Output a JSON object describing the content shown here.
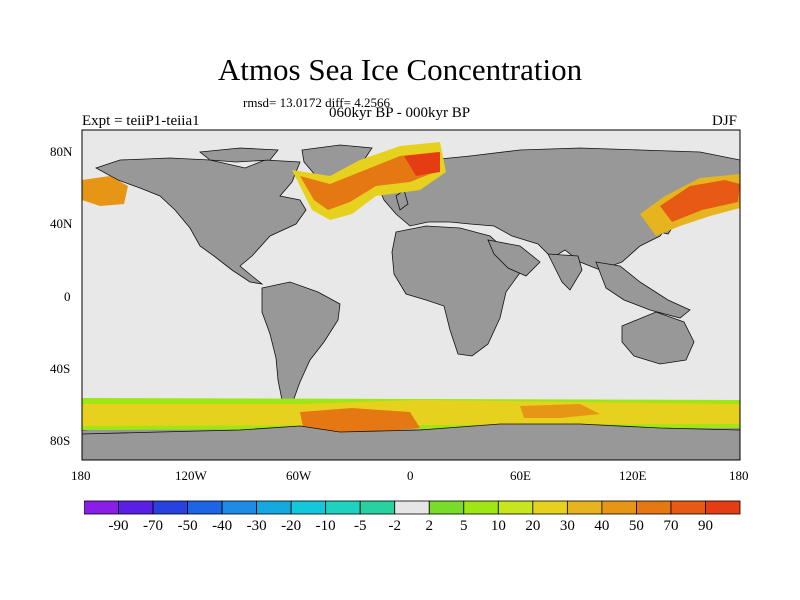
{
  "title": "Atmos Sea Ice Concentration",
  "stats": "rmsd= 13.0172 diff= 4.2566",
  "period": "060kyr BP - 000kyr BP",
  "experiment": "Expt = teiiP1-teiia1",
  "season": "DJF",
  "lat_labels": [
    "80N",
    "40N",
    "0",
    "40S",
    "80S"
  ],
  "lon_labels": [
    "180",
    "120W",
    "60W",
    "0",
    "60E",
    "120E",
    "180"
  ],
  "colorbar": {
    "labels": [
      "-90",
      "-70",
      "-50",
      "-40",
      "-30",
      "-20",
      "-10",
      "-5",
      "-2",
      "2",
      "5",
      "10",
      "20",
      "30",
      "40",
      "50",
      "70",
      "90"
    ],
    "colors": [
      "#8a1ee6",
      "#5a1ee6",
      "#2842e0",
      "#1e64e6",
      "#1e8ce6",
      "#14aae0",
      "#14c8dc",
      "#1ed2c0",
      "#28d2a0",
      "#e6e6e6",
      "#78dc28",
      "#9ee614",
      "#c8e61e",
      "#e6d21e",
      "#e6b41e",
      "#e69614",
      "#e67814",
      "#e65a14",
      "#e63c14"
    ]
  },
  "colors": {
    "ocean": "#e8e8e8",
    "land": "#989898",
    "no_change": "#e6e6e6"
  }
}
